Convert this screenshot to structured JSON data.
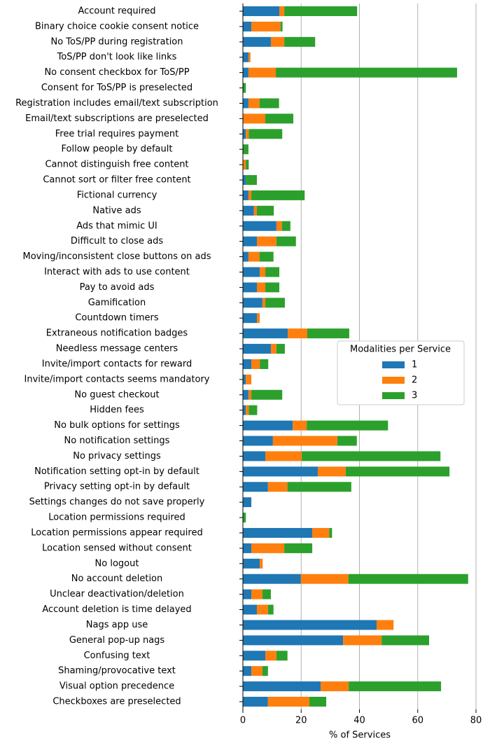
{
  "chart_data": {
    "type": "stacked-barh",
    "categories": [
      "Account required",
      "Binary choice cookie consent notice",
      "No ToS/PP during registration",
      "ToS/PP don't look like links",
      "No consent checkbox for ToS/PP",
      "Consent for ToS/PP is preselected",
      "Registration includes email/text subscription",
      "Email/text subscriptions are preselected",
      "Free trial requires payment",
      "Follow people by default",
      "Cannot distinguish free content",
      "Cannot sort or filter free content",
      "Fictional currency",
      "Native ads",
      "Ads that mimic UI",
      "Difficult to close ads",
      "Moving/inconsistent close buttons on ads",
      "Interact with ads to use content",
      "Pay to avoid ads",
      "Gamification",
      "Countdown timers",
      "Extraneous notification badges",
      "Needless message centers",
      "Invite/import contacts for reward",
      "Invite/import contacts seems mandatory",
      "No guest checkout",
      "Hidden fees",
      "No bulk options for settings",
      "No notification settings",
      "No privacy settings",
      "Notification setting opt-in by default",
      "Privacy setting opt-in by default",
      "Settings changes do not save properly",
      "Location permissions required",
      "Location permissions appear required",
      "Location sensed without consent",
      "No logout",
      "No account deletion",
      "Unclear deactivation/deletion",
      "Account deletion is time delayed",
      "Nags app use",
      "General pop-up nags",
      "Confusing text",
      "Shaming/provocative text",
      "Visual option precedence",
      "Checkboxes are preselected"
    ],
    "series": [
      {
        "name": "1",
        "color": "#1f77b4",
        "values": [
          12.5,
          2.9,
          9.6,
          1.9,
          1.9,
          0,
          1.9,
          0,
          1.0,
          0,
          0,
          1.0,
          1.9,
          3.8,
          11.5,
          4.8,
          1.9,
          5.8,
          4.8,
          6.7,
          4.8,
          15.4,
          9.6,
          2.9,
          1.0,
          1.9,
          1.0,
          17.1,
          10.3,
          7.7,
          25.7,
          8.6,
          2.9,
          0,
          23.8,
          2.9,
          5.8,
          19.9,
          2.9,
          4.8,
          45.9,
          34.4,
          7.7,
          2.9,
          26.7,
          8.6
        ]
      },
      {
        "name": "2",
        "color": "#ff7f0e",
        "values": [
          1.7,
          10,
          4.6,
          0.7,
          9.4,
          0,
          3.8,
          7.7,
          1.0,
          0,
          1.0,
          0,
          1.0,
          1.0,
          1.9,
          6.7,
          3.8,
          1.9,
          2.9,
          1.0,
          1.0,
          6.7,
          1.9,
          2.9,
          1.9,
          1.0,
          1.0,
          4.8,
          22.1,
          12.5,
          9.6,
          6.7,
          0,
          0,
          5.8,
          11.3,
          1.0,
          16.3,
          3.8,
          3.8,
          5.8,
          13.2,
          3.8,
          3.8,
          9.6,
          14.2
        ]
      },
      {
        "name": "3",
        "color": "#2ca02c",
        "values": [
          25,
          0.7,
          10.6,
          0,
          62.2,
          1.0,
          6.7,
          9.6,
          11.5,
          1.9,
          1.0,
          3.8,
          18.3,
          5.8,
          2.9,
          6.7,
          4.8,
          4.8,
          4.8,
          6.7,
          0,
          14.4,
          2.9,
          2.9,
          0,
          10.6,
          2.9,
          27.9,
          6.7,
          47.6,
          35.6,
          21.9,
          0,
          1.0,
          1.0,
          9.6,
          0,
          41.1,
          2.9,
          1.9,
          0,
          16.3,
          3.8,
          1.9,
          31.7,
          5.8
        ]
      }
    ],
    "xlabel": "% of Services",
    "xlim": [
      0,
      80
    ],
    "xticks": [
      0,
      20,
      40,
      60,
      80
    ],
    "grid": "x",
    "legend_title": "Modalities per Service",
    "legend_position": "right"
  }
}
